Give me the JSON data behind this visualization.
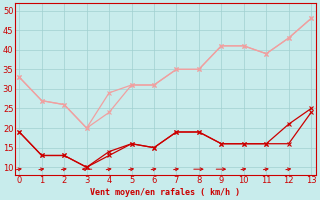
{
  "x": [
    0,
    1,
    2,
    3,
    4,
    5,
    6,
    7,
    8,
    9,
    10,
    11,
    12,
    13
  ],
  "y_light1": [
    33,
    27,
    26,
    20,
    24,
    31,
    31,
    35,
    35,
    41,
    41,
    39,
    43,
    48
  ],
  "y_light2": [
    33,
    27,
    26,
    20,
    29,
    31,
    31,
    35,
    35,
    41,
    41,
    39,
    43,
    48
  ],
  "y_dark1": [
    19,
    13,
    13,
    10,
    13,
    16,
    15,
    19,
    19,
    16,
    16,
    16,
    16,
    24
  ],
  "y_dark2": [
    19,
    13,
    13,
    10,
    14,
    16,
    15,
    19,
    19,
    16,
    16,
    16,
    21,
    25
  ],
  "xlabel": "Vent moyen/en rafales ( km/h )",
  "xlim": [
    -0.2,
    13.2
  ],
  "ylim": [
    8,
    52
  ],
  "yticks": [
    10,
    15,
    20,
    25,
    30,
    35,
    40,
    45,
    50
  ],
  "xticks": [
    0,
    1,
    2,
    3,
    4,
    5,
    6,
    7,
    8,
    9,
    10,
    11,
    12,
    13
  ],
  "bg_color": "#c8ecec",
  "grid_color": "#a0d0d0",
  "line_color_light": "#f0a0a0",
  "line_color_dark": "#cc0000",
  "tick_fontsize": 6,
  "xlabel_fontsize": 6
}
